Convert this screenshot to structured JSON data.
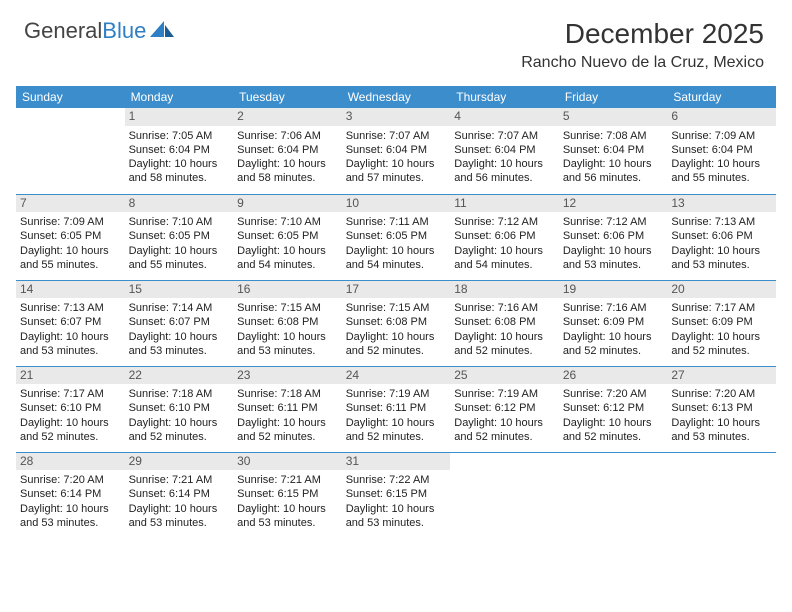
{
  "logo": {
    "text1": "General",
    "text2": "Blue"
  },
  "title": "December 2025",
  "location": "Rancho Nuevo de la Cruz, Mexico",
  "day_header_bg": "#3c8dcc",
  "daynum_bg": "#e9e9e9",
  "daynames": [
    "Sunday",
    "Monday",
    "Tuesday",
    "Wednesday",
    "Thursday",
    "Friday",
    "Saturday"
  ],
  "weeks": [
    [
      {
        "n": "",
        "l": []
      },
      {
        "n": "1",
        "l": [
          "Sunrise: 7:05 AM",
          "Sunset: 6:04 PM",
          "Daylight: 10 hours and 58 minutes."
        ]
      },
      {
        "n": "2",
        "l": [
          "Sunrise: 7:06 AM",
          "Sunset: 6:04 PM",
          "Daylight: 10 hours and 58 minutes."
        ]
      },
      {
        "n": "3",
        "l": [
          "Sunrise: 7:07 AM",
          "Sunset: 6:04 PM",
          "Daylight: 10 hours and 57 minutes."
        ]
      },
      {
        "n": "4",
        "l": [
          "Sunrise: 7:07 AM",
          "Sunset: 6:04 PM",
          "Daylight: 10 hours and 56 minutes."
        ]
      },
      {
        "n": "5",
        "l": [
          "Sunrise: 7:08 AM",
          "Sunset: 6:04 PM",
          "Daylight: 10 hours and 56 minutes."
        ]
      },
      {
        "n": "6",
        "l": [
          "Sunrise: 7:09 AM",
          "Sunset: 6:04 PM",
          "Daylight: 10 hours and 55 minutes."
        ]
      }
    ],
    [
      {
        "n": "7",
        "l": [
          "Sunrise: 7:09 AM",
          "Sunset: 6:05 PM",
          "Daylight: 10 hours and 55 minutes."
        ]
      },
      {
        "n": "8",
        "l": [
          "Sunrise: 7:10 AM",
          "Sunset: 6:05 PM",
          "Daylight: 10 hours and 55 minutes."
        ]
      },
      {
        "n": "9",
        "l": [
          "Sunrise: 7:10 AM",
          "Sunset: 6:05 PM",
          "Daylight: 10 hours and 54 minutes."
        ]
      },
      {
        "n": "10",
        "l": [
          "Sunrise: 7:11 AM",
          "Sunset: 6:05 PM",
          "Daylight: 10 hours and 54 minutes."
        ]
      },
      {
        "n": "11",
        "l": [
          "Sunrise: 7:12 AM",
          "Sunset: 6:06 PM",
          "Daylight: 10 hours and 54 minutes."
        ]
      },
      {
        "n": "12",
        "l": [
          "Sunrise: 7:12 AM",
          "Sunset: 6:06 PM",
          "Daylight: 10 hours and 53 minutes."
        ]
      },
      {
        "n": "13",
        "l": [
          "Sunrise: 7:13 AM",
          "Sunset: 6:06 PM",
          "Daylight: 10 hours and 53 minutes."
        ]
      }
    ],
    [
      {
        "n": "14",
        "l": [
          "Sunrise: 7:13 AM",
          "Sunset: 6:07 PM",
          "Daylight: 10 hours and 53 minutes."
        ]
      },
      {
        "n": "15",
        "l": [
          "Sunrise: 7:14 AM",
          "Sunset: 6:07 PM",
          "Daylight: 10 hours and 53 minutes."
        ]
      },
      {
        "n": "16",
        "l": [
          "Sunrise: 7:15 AM",
          "Sunset: 6:08 PM",
          "Daylight: 10 hours and 53 minutes."
        ]
      },
      {
        "n": "17",
        "l": [
          "Sunrise: 7:15 AM",
          "Sunset: 6:08 PM",
          "Daylight: 10 hours and 52 minutes."
        ]
      },
      {
        "n": "18",
        "l": [
          "Sunrise: 7:16 AM",
          "Sunset: 6:08 PM",
          "Daylight: 10 hours and 52 minutes."
        ]
      },
      {
        "n": "19",
        "l": [
          "Sunrise: 7:16 AM",
          "Sunset: 6:09 PM",
          "Daylight: 10 hours and 52 minutes."
        ]
      },
      {
        "n": "20",
        "l": [
          "Sunrise: 7:17 AM",
          "Sunset: 6:09 PM",
          "Daylight: 10 hours and 52 minutes."
        ]
      }
    ],
    [
      {
        "n": "21",
        "l": [
          "Sunrise: 7:17 AM",
          "Sunset: 6:10 PM",
          "Daylight: 10 hours and 52 minutes."
        ]
      },
      {
        "n": "22",
        "l": [
          "Sunrise: 7:18 AM",
          "Sunset: 6:10 PM",
          "Daylight: 10 hours and 52 minutes."
        ]
      },
      {
        "n": "23",
        "l": [
          "Sunrise: 7:18 AM",
          "Sunset: 6:11 PM",
          "Daylight: 10 hours and 52 minutes."
        ]
      },
      {
        "n": "24",
        "l": [
          "Sunrise: 7:19 AM",
          "Sunset: 6:11 PM",
          "Daylight: 10 hours and 52 minutes."
        ]
      },
      {
        "n": "25",
        "l": [
          "Sunrise: 7:19 AM",
          "Sunset: 6:12 PM",
          "Daylight: 10 hours and 52 minutes."
        ]
      },
      {
        "n": "26",
        "l": [
          "Sunrise: 7:20 AM",
          "Sunset: 6:12 PM",
          "Daylight: 10 hours and 52 minutes."
        ]
      },
      {
        "n": "27",
        "l": [
          "Sunrise: 7:20 AM",
          "Sunset: 6:13 PM",
          "Daylight: 10 hours and 53 minutes."
        ]
      }
    ],
    [
      {
        "n": "28",
        "l": [
          "Sunrise: 7:20 AM",
          "Sunset: 6:14 PM",
          "Daylight: 10 hours and 53 minutes."
        ]
      },
      {
        "n": "29",
        "l": [
          "Sunrise: 7:21 AM",
          "Sunset: 6:14 PM",
          "Daylight: 10 hours and 53 minutes."
        ]
      },
      {
        "n": "30",
        "l": [
          "Sunrise: 7:21 AM",
          "Sunset: 6:15 PM",
          "Daylight: 10 hours and 53 minutes."
        ]
      },
      {
        "n": "31",
        "l": [
          "Sunrise: 7:22 AM",
          "Sunset: 6:15 PM",
          "Daylight: 10 hours and 53 minutes."
        ]
      },
      {
        "n": "",
        "l": []
      },
      {
        "n": "",
        "l": []
      },
      {
        "n": "",
        "l": []
      }
    ]
  ]
}
